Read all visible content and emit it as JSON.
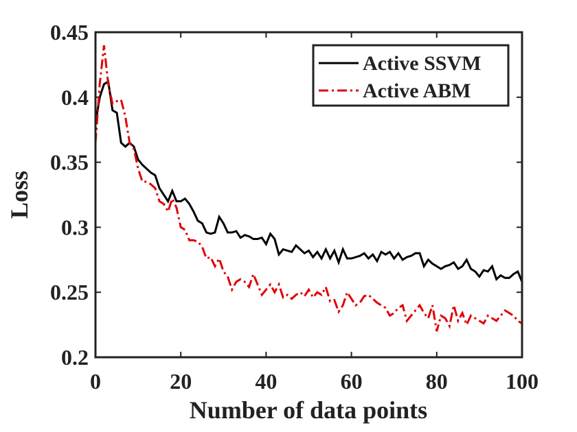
{
  "chart_data": {
    "type": "line",
    "xlabel": "Number of data points",
    "ylabel": "Loss",
    "x": [
      0,
      1,
      2,
      3,
      4,
      5,
      6,
      7,
      8,
      9,
      10,
      11,
      12,
      13,
      14,
      15,
      16,
      17,
      18,
      19,
      20,
      21,
      22,
      23,
      24,
      25,
      26,
      27,
      28,
      29,
      30,
      31,
      32,
      33,
      34,
      35,
      36,
      37,
      38,
      39,
      40,
      41,
      42,
      43,
      44,
      45,
      46,
      47,
      48,
      49,
      50,
      51,
      52,
      53,
      54,
      55,
      56,
      57,
      58,
      59,
      60,
      61,
      62,
      63,
      64,
      65,
      66,
      67,
      68,
      69,
      70,
      71,
      72,
      73,
      74,
      75,
      76,
      77,
      78,
      79,
      80,
      81,
      82,
      83,
      84,
      85,
      86,
      87,
      88,
      89,
      90,
      91,
      92,
      93,
      94,
      95,
      96,
      97,
      98,
      99,
      100
    ],
    "series": [
      {
        "name": "Active SSVM",
        "color": "#000000",
        "dash": "solid",
        "values": [
          0.38,
          0.4,
          0.41,
          0.412,
          0.39,
          0.388,
          0.365,
          0.362,
          0.365,
          0.362,
          0.352,
          0.348,
          0.345,
          0.342,
          0.34,
          0.33,
          0.325,
          0.32,
          0.328,
          0.32,
          0.32,
          0.322,
          0.318,
          0.312,
          0.305,
          0.303,
          0.296,
          0.295,
          0.296,
          0.308,
          0.303,
          0.296,
          0.296,
          0.297,
          0.292,
          0.294,
          0.293,
          0.291,
          0.291,
          0.292,
          0.287,
          0.295,
          0.291,
          0.279,
          0.283,
          0.282,
          0.281,
          0.286,
          0.283,
          0.28,
          0.282,
          0.277,
          0.281,
          0.276,
          0.283,
          0.276,
          0.282,
          0.273,
          0.283,
          0.276,
          0.276,
          0.277,
          0.278,
          0.28,
          0.276,
          0.279,
          0.274,
          0.281,
          0.279,
          0.281,
          0.276,
          0.28,
          0.275,
          0.277,
          0.278,
          0.28,
          0.28,
          0.27,
          0.275,
          0.272,
          0.27,
          0.268,
          0.27,
          0.271,
          0.273,
          0.268,
          0.27,
          0.275,
          0.268,
          0.266,
          0.262,
          0.267,
          0.266,
          0.27,
          0.26,
          0.263,
          0.261,
          0.261,
          0.264,
          0.266,
          0.258
        ]
      },
      {
        "name": "Active ABM",
        "color": "#e00000",
        "dash": "dashdot",
        "values": [
          0.365,
          0.41,
          0.44,
          0.41,
          0.395,
          0.397,
          0.398,
          0.385,
          0.365,
          0.36,
          0.345,
          0.335,
          0.335,
          0.333,
          0.33,
          0.32,
          0.318,
          0.312,
          0.322,
          0.315,
          0.3,
          0.298,
          0.29,
          0.29,
          0.289,
          0.285,
          0.276,
          0.277,
          0.27,
          0.276,
          0.266,
          0.262,
          0.252,
          0.258,
          0.26,
          0.258,
          0.254,
          0.264,
          0.256,
          0.248,
          0.252,
          0.256,
          0.25,
          0.256,
          0.246,
          0.248,
          0.245,
          0.248,
          0.25,
          0.247,
          0.252,
          0.246,
          0.25,
          0.248,
          0.254,
          0.243,
          0.244,
          0.235,
          0.24,
          0.25,
          0.245,
          0.24,
          0.242,
          0.247,
          0.248,
          0.245,
          0.242,
          0.24,
          0.238,
          0.232,
          0.234,
          0.238,
          0.24,
          0.228,
          0.232,
          0.236,
          0.24,
          0.234,
          0.23,
          0.24,
          0.22,
          0.232,
          0.23,
          0.224,
          0.24,
          0.228,
          0.234,
          0.225,
          0.232,
          0.23,
          0.228,
          0.226,
          0.232,
          0.23,
          0.228,
          0.232,
          0.236,
          0.234,
          0.232,
          0.228,
          0.226
        ]
      }
    ],
    "xlim": [
      0,
      100
    ],
    "xticks": [
      0,
      20,
      40,
      60,
      80,
      100
    ],
    "ylim": [
      0.2,
      0.45
    ],
    "yticks": [
      0.2,
      0.25,
      0.3,
      0.35,
      0.4,
      0.45
    ],
    "legend": "upper right",
    "grid": false
  }
}
